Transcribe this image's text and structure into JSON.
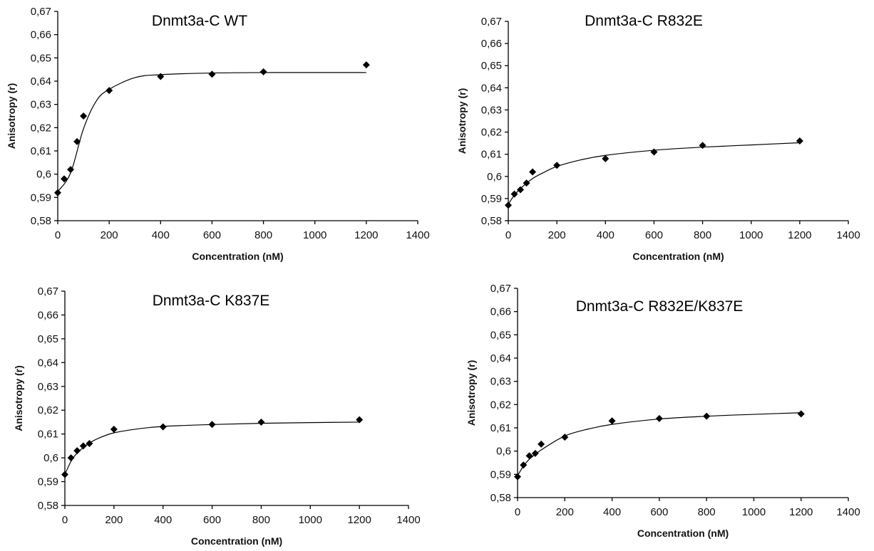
{
  "chart_data": [
    {
      "type": "scatter",
      "title": "Dnmt3a-C WT",
      "xlabel": "Concentration (nM)",
      "ylabel": "Anisotropy (r)",
      "xlim": [
        0,
        1400
      ],
      "ylim": [
        0.58,
        0.67
      ],
      "xticks": [
        "0",
        "200",
        "400",
        "600",
        "800",
        "1000",
        "1200",
        "1400"
      ],
      "yticks": [
        "0,58",
        "0,59",
        "0,6",
        "0,61",
        "0,62",
        "0,63",
        "0,64",
        "0,65",
        "0,66",
        "0,67"
      ],
      "grid": false,
      "series": [
        {
          "marker": "diamond",
          "points": [
            [
              0,
              0.592
            ],
            [
              25,
              0.598
            ],
            [
              50,
              0.602
            ],
            [
              75,
              0.614
            ],
            [
              100,
              0.625
            ],
            [
              200,
              0.636
            ],
            [
              400,
              0.642
            ],
            [
              600,
              0.643
            ],
            [
              800,
              0.644
            ],
            [
              1200,
              0.647
            ]
          ]
        }
      ],
      "fit": [
        [
          0,
          0.5925
        ],
        [
          50,
          0.6005
        ],
        [
          100,
          0.6195
        ],
        [
          150,
          0.6315
        ],
        [
          200,
          0.6365
        ],
        [
          300,
          0.6415
        ],
        [
          400,
          0.6428
        ],
        [
          600,
          0.6435
        ],
        [
          800,
          0.6437
        ],
        [
          1200,
          0.6437
        ]
      ]
    },
    {
      "type": "scatter",
      "title": "Dnmt3a-C R832E",
      "xlabel": "Concentration (nM)",
      "ylabel": "Anisotropy (r)",
      "xlim": [
        0,
        1400
      ],
      "ylim": [
        0.58,
        0.67
      ],
      "xticks": [
        "0",
        "200",
        "400",
        "600",
        "800",
        "1000",
        "1200",
        "1400"
      ],
      "yticks": [
        "0,58",
        "0,59",
        "0,6",
        "0,61",
        "0,62",
        "0,63",
        "0,64",
        "0,65",
        "0,66",
        "0,67"
      ],
      "grid": false,
      "series": [
        {
          "marker": "diamond",
          "points": [
            [
              0,
              0.587
            ],
            [
              25,
              0.592
            ],
            [
              50,
              0.594
            ],
            [
              75,
              0.597
            ],
            [
              100,
              0.602
            ],
            [
              200,
              0.605
            ],
            [
              400,
              0.608
            ],
            [
              600,
              0.611
            ],
            [
              800,
              0.614
            ],
            [
              1200,
              0.616
            ]
          ]
        }
      ],
      "fit": [
        [
          0,
          0.5875
        ],
        [
          25,
          0.5915
        ],
        [
          50,
          0.5945
        ],
        [
          100,
          0.599
        ],
        [
          150,
          0.602
        ],
        [
          200,
          0.6045
        ],
        [
          300,
          0.6075
        ],
        [
          400,
          0.6095
        ],
        [
          600,
          0.6118
        ],
        [
          800,
          0.6132
        ],
        [
          1000,
          0.6142
        ],
        [
          1200,
          0.6152
        ]
      ]
    },
    {
      "type": "scatter",
      "title": "Dnmt3a-C K837E",
      "xlabel": "Concentration (nM)",
      "ylabel": "Anisotropy (r)",
      "xlim": [
        0,
        1400
      ],
      "ylim": [
        0.58,
        0.67
      ],
      "xticks": [
        "0",
        "200",
        "400",
        "600",
        "800",
        "1000",
        "1200",
        "1400"
      ],
      "yticks": [
        "0,58",
        "0,59",
        "0,6",
        "0,61",
        "0,62",
        "0,63",
        "0,64",
        "0,65",
        "0,66",
        "0,67"
      ],
      "grid": false,
      "series": [
        {
          "marker": "diamond",
          "points": [
            [
              0,
              0.593
            ],
            [
              25,
              0.6
            ],
            [
              50,
              0.603
            ],
            [
              75,
              0.605
            ],
            [
              100,
              0.606
            ],
            [
              200,
              0.612
            ],
            [
              400,
              0.613
            ],
            [
              600,
              0.614
            ],
            [
              800,
              0.615
            ],
            [
              1200,
              0.616
            ]
          ]
        }
      ],
      "fit": [
        [
          0,
          0.593
        ],
        [
          25,
          0.5985
        ],
        [
          50,
          0.602
        ],
        [
          100,
          0.6062
        ],
        [
          150,
          0.6088
        ],
        [
          200,
          0.6105
        ],
        [
          300,
          0.6122
        ],
        [
          400,
          0.6132
        ],
        [
          600,
          0.614
        ],
        [
          800,
          0.6145
        ],
        [
          1000,
          0.6148
        ],
        [
          1200,
          0.615
        ]
      ]
    },
    {
      "type": "scatter",
      "title": "Dnmt3a-C R832E/K837E",
      "xlabel": "Concentration (nM)",
      "ylabel": "Anisotropy (r)",
      "xlim": [
        0,
        1400
      ],
      "ylim": [
        0.58,
        0.67
      ],
      "xticks": [
        "0",
        "200",
        "400",
        "600",
        "800",
        "1000",
        "1200",
        "1400"
      ],
      "yticks": [
        "0,58",
        "0,59",
        "0,6",
        "0,61",
        "0,62",
        "0,63",
        "0,64",
        "0,65",
        "0,66",
        "0,67"
      ],
      "grid": false,
      "series": [
        {
          "marker": "diamond",
          "points": [
            [
              0,
              0.589
            ],
            [
              25,
              0.594
            ],
            [
              50,
              0.598
            ],
            [
              75,
              0.599
            ],
            [
              100,
              0.603
            ],
            [
              200,
              0.606
            ],
            [
              400,
              0.613
            ],
            [
              600,
              0.614
            ],
            [
              800,
              0.615
            ],
            [
              1200,
              0.616
            ]
          ]
        }
      ],
      "fit": [
        [
          0,
          0.5895
        ],
        [
          25,
          0.5935
        ],
        [
          50,
          0.5965
        ],
        [
          100,
          0.6005
        ],
        [
          200,
          0.6065
        ],
        [
          300,
          0.6095
        ],
        [
          400,
          0.6115
        ],
        [
          600,
          0.6138
        ],
        [
          800,
          0.615
        ],
        [
          1000,
          0.6158
        ],
        [
          1200,
          0.6165
        ]
      ]
    }
  ]
}
